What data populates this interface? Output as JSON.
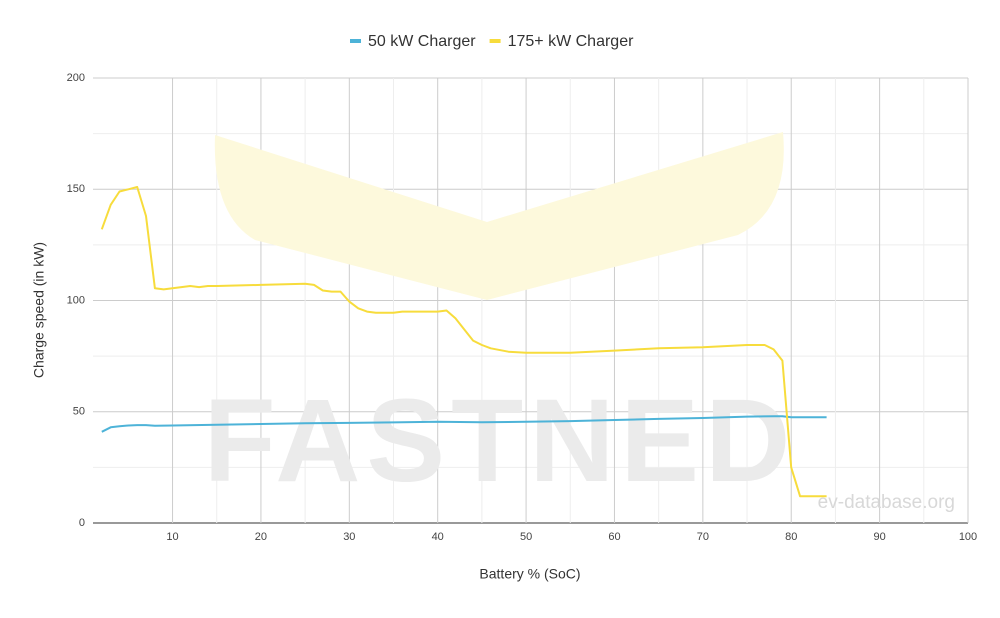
{
  "chart_data": {
    "type": "line",
    "xlabel": "Battery % (SoC)",
    "ylabel": "Charge speed (in kW)",
    "watermarks": [
      "FASTNED",
      "ev-database.org"
    ],
    "xlim": [
      1,
      100
    ],
    "xticks": [
      10,
      20,
      30,
      40,
      50,
      60,
      70,
      80,
      90,
      100
    ],
    "ylim": [
      0,
      200
    ],
    "yticks": [
      0,
      50,
      100,
      150,
      200
    ],
    "grid": true,
    "legend": "top",
    "series": [
      {
        "name": "50 kW Charger",
        "color": "#4db3d8",
        "x": [
          2,
          3,
          4,
          5,
          6,
          7,
          8,
          10,
          15,
          20,
          25,
          30,
          35,
          40,
          45,
          50,
          55,
          60,
          65,
          70,
          75,
          78,
          79,
          80,
          84
        ],
        "values": [
          41,
          43,
          43.5,
          43.8,
          44,
          44,
          43.7,
          43.8,
          44.2,
          44.5,
          44.8,
          45,
          45.2,
          45.5,
          45.3,
          45.5,
          45.8,
          46.3,
          46.8,
          47.2,
          47.8,
          48,
          48,
          47.5,
          47.5
        ]
      },
      {
        "name": "175+ kW Charger",
        "color": "#f7dc3c",
        "x": [
          2,
          3,
          4,
          5,
          6,
          7,
          8,
          9,
          10,
          11,
          12,
          13,
          14,
          15,
          20,
          25,
          26,
          27,
          28,
          29,
          30,
          31,
          32,
          33,
          35,
          36,
          40,
          41,
          42,
          43,
          44,
          45,
          46,
          48,
          50,
          55,
          60,
          65,
          70,
          75,
          77,
          78,
          79,
          80,
          81,
          82,
          84
        ],
        "values": [
          132,
          143,
          149,
          150,
          151,
          138,
          105.5,
          105,
          105.5,
          106,
          106.5,
          106,
          106.5,
          106.5,
          107,
          107.5,
          107,
          104.5,
          104,
          104,
          99.5,
          96.5,
          95,
          94.5,
          94.5,
          95,
          95,
          95.5,
          92,
          87,
          82,
          80,
          78.5,
          77,
          76.5,
          76.5,
          77.5,
          78.5,
          79,
          80,
          80,
          78,
          73,
          25,
          12,
          12,
          12
        ]
      }
    ]
  }
}
